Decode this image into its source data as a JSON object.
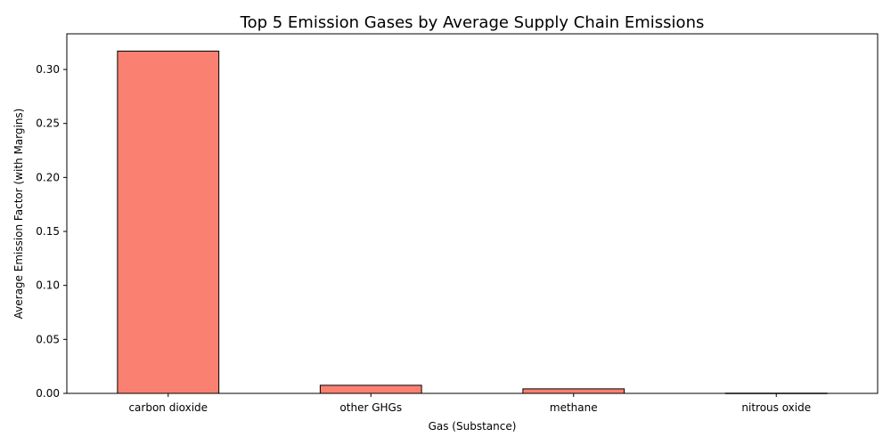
{
  "chart_data": {
    "type": "bar",
    "title": "Top 5 Emission Gases by Average Supply Chain Emissions",
    "xlabel": "Gas (Substance)",
    "ylabel": "Average Emission Factor (with Margins)",
    "categories": [
      "carbon dioxide",
      "other GHGs",
      "methane",
      "nitrous oxide"
    ],
    "values": [
      0.317,
      0.0075,
      0.0042,
      0.0002
    ],
    "ylim": [
      0,
      0.333
    ],
    "yticks": [
      "0.00",
      "0.05",
      "0.10",
      "0.15",
      "0.20",
      "0.25",
      "0.30"
    ],
    "ytick_values": [
      0,
      0.05,
      0.1,
      0.15,
      0.2,
      0.25,
      0.3
    ],
    "bar_color": "#FA8072",
    "edge_color": "#000000",
    "grid": false,
    "legend": "none"
  }
}
